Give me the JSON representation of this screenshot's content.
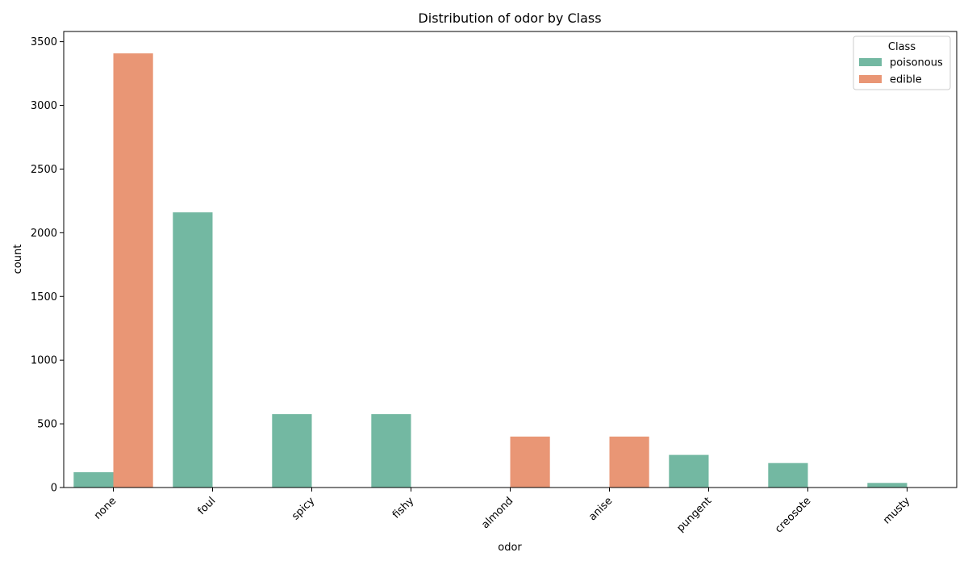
{
  "chart_data": {
    "type": "bar",
    "title": "Distribution of odor by Class",
    "xlabel": "odor",
    "ylabel": "count",
    "categories": [
      "none",
      "foul",
      "spicy",
      "fishy",
      "almond",
      "anise",
      "pungent",
      "creosote",
      "musty"
    ],
    "series": [
      {
        "name": "poisonous",
        "color": "#73b8a2",
        "values": [
          120,
          2160,
          576,
          576,
          0,
          0,
          256,
          192,
          36
        ]
      },
      {
        "name": "edible",
        "color": "#e99675",
        "values": [
          3408,
          0,
          0,
          0,
          400,
          400,
          0,
          0,
          0
        ]
      }
    ],
    "ylim": [
      0,
      3580
    ],
    "yticks": [
      0,
      500,
      1000,
      1500,
      2000,
      2500,
      3000,
      3500
    ],
    "ytick_labels": [
      "0",
      "500",
      "1000",
      "1500",
      "2000",
      "2500",
      "3000",
      "3500"
    ],
    "legend": {
      "title": "Class",
      "placement": "top-right"
    },
    "grid": false
  }
}
